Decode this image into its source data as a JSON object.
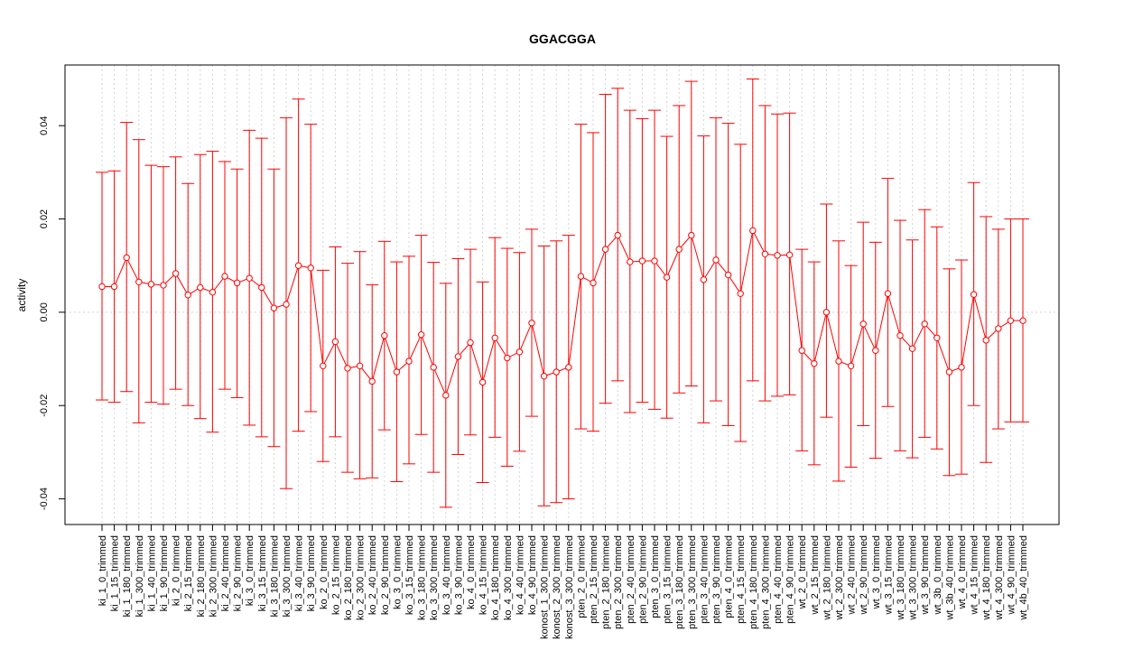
{
  "chart_data": {
    "type": "line",
    "title": "GGACGGA",
    "xlabel": "",
    "ylabel": "activity",
    "ylim": [
      -0.0455,
      0.053
    ],
    "yticks": [
      -0.04,
      -0.02,
      0.0,
      0.02,
      0.04
    ],
    "ytick_labels": [
      "-0.04",
      "-0.02",
      "0.00",
      "0.02",
      "0.04"
    ],
    "grid": true,
    "zero_line": true,
    "color": "#ff0000",
    "categories": [
      "ki_1_0_trimmed",
      "ki_1_15_trimmed",
      "ki_1_180_trimmed",
      "ki_1_300_trimmed",
      "ki_1_40_trimmed",
      "ki_1_90_trimmed",
      "ki_2_0_trimmed",
      "ki_2_15_trimmed",
      "ki_2_180_trimmed",
      "ki_2_300_trimmed",
      "ki_2_40_trimmed",
      "ki_2_90_trimmed",
      "ki_3_0_trimmed",
      "ki_3_15_trimmed",
      "ki_3_180_trimmed",
      "ki_3_300_trimmed",
      "ki_3_40_trimmed",
      "ki_3_90_trimmed",
      "ko_2_0_trimmed",
      "ko_2_15_trimmed",
      "ko_2_180_trimmed",
      "ko_2_300_trimmed",
      "ko_2_40_trimmed",
      "ko_2_90_trimmed",
      "ko_3_0_trimmed",
      "ko_3_15_trimmed",
      "ko_3_180_trimmed",
      "ko_3_300_trimmed",
      "ko_3_40_trimmed",
      "ko_3_90_trimmed",
      "ko_4_0_trimmed",
      "ko_4_15_trimmed",
      "ko_4_180_trimmed",
      "ko_4_300_trimmed",
      "ko_4_40_trimmed",
      "ko_4_90_trimmed",
      "konost_1_300_trimmed",
      "konost_2_300_trimmed",
      "konost_3_300_trimmed",
      "pten_2_0_trimmed",
      "pten_2_15_trimmed",
      "pten_2_180_trimmed",
      "pten_2_300_trimmed",
      "pten_2_40_trimmed",
      "pten_2_90_trimmed",
      "pten_3_0_trimmed",
      "pten_3_15_trimmed",
      "pten_3_180_trimmed",
      "pten_3_300_trimmed",
      "pten_3_40_trimmed",
      "pten_3_90_trimmed",
      "pten_4_0_trimmed",
      "pten_4_15_trimmed",
      "pten_4_180_trimmed",
      "pten_4_300_trimmed",
      "pten_4_40_trimmed",
      "pten_4_90_trimmed",
      "wt_2_0_trimmed",
      "wt_2_15_trimmed",
      "wt_2_180_trimmed",
      "wt_2_300_trimmed",
      "wt_2_40_trimmed",
      "wt_2_90_trimmed",
      "wt_3_0_trimmed",
      "wt_3_15_trimmed",
      "wt_3_180_trimmed",
      "wt_3_300_trimmed",
      "wt_3_90_trimmed",
      "wt_3b_0_trimmed",
      "wt_3b_40_trimmed",
      "wt_4_0_trimmed",
      "wt_4_15_trimmed",
      "wt_4_180_trimmed",
      "wt_4_300_trimmed",
      "wt_4_90_trimmed",
      "wt_4b_40_trimmed"
    ],
    "series": [
      {
        "values": [
          0.0055,
          0.0055,
          0.0117,
          0.0065,
          0.006,
          0.0058,
          0.0083,
          0.0037,
          0.0053,
          0.0043,
          0.0077,
          0.0063,
          0.0073,
          0.0053,
          0.0009,
          0.0017,
          0.01,
          0.0095,
          -0.0115,
          -0.0063,
          -0.012,
          -0.0115,
          -0.0148,
          -0.005,
          -0.0128,
          -0.0105,
          -0.0048,
          -0.0118,
          -0.0178,
          -0.0095,
          -0.0065,
          -0.015,
          -0.0055,
          -0.0098,
          -0.0085,
          -0.0023,
          -0.0137,
          -0.0128,
          -0.0118,
          0.0077,
          0.0063,
          0.0135,
          0.0165,
          0.0108,
          0.011,
          0.011,
          0.0075,
          0.0135,
          0.0165,
          0.007,
          0.0112,
          0.008,
          0.004,
          0.0175,
          0.0125,
          0.0122,
          0.0123,
          -0.0082,
          -0.011,
          0.0,
          -0.0105,
          -0.0115,
          -0.0025,
          -0.0082,
          0.004,
          -0.005,
          -0.0078,
          -0.0025,
          -0.0055,
          -0.0128,
          -0.0118,
          0.0038,
          -0.006,
          -0.0035,
          -0.0018,
          -0.0018
        ],
        "upper": [
          0.03,
          0.0303,
          0.0407,
          0.037,
          0.0315,
          0.0312,
          0.0333,
          0.0276,
          0.0338,
          0.0345,
          0.0323,
          0.0307,
          0.039,
          0.0373,
          0.0307,
          0.0417,
          0.0457,
          0.0403,
          0.009,
          0.014,
          0.0105,
          0.013,
          0.0059,
          0.0152,
          0.0108,
          0.012,
          0.0165,
          0.0107,
          0.0062,
          0.0115,
          0.0135,
          0.0065,
          0.016,
          0.0137,
          0.0128,
          0.0178,
          0.0142,
          0.0153,
          0.0165,
          0.0403,
          0.0385,
          0.0467,
          0.048,
          0.0433,
          0.0415,
          0.0433,
          0.0377,
          0.0443,
          0.0495,
          0.0378,
          0.0417,
          0.0405,
          0.036,
          0.05,
          0.0443,
          0.0425,
          0.0427,
          0.0135,
          0.0108,
          0.0232,
          0.0153,
          0.01,
          0.0193,
          0.015,
          0.0287,
          0.0197,
          0.0155,
          0.022,
          0.0183,
          0.0093,
          0.0112,
          0.0278,
          0.0205,
          0.0178,
          0.02,
          0.02
        ],
        "lower": [
          -0.0188,
          -0.0193,
          -0.017,
          -0.0237,
          -0.0193,
          -0.0197,
          -0.0165,
          -0.02,
          -0.0228,
          -0.0257,
          -0.0165,
          -0.0183,
          -0.0242,
          -0.0267,
          -0.0288,
          -0.0378,
          -0.0255,
          -0.0213,
          -0.032,
          -0.0267,
          -0.0343,
          -0.0357,
          -0.0355,
          -0.0252,
          -0.0363,
          -0.0325,
          -0.0262,
          -0.0343,
          -0.0418,
          -0.0305,
          -0.0263,
          -0.0365,
          -0.0268,
          -0.033,
          -0.0298,
          -0.0223,
          -0.0415,
          -0.0408,
          -0.04,
          -0.025,
          -0.0255,
          -0.0195,
          -0.0147,
          -0.0215,
          -0.0193,
          -0.0208,
          -0.0227,
          -0.0173,
          -0.0158,
          -0.0237,
          -0.019,
          -0.0243,
          -0.0277,
          -0.0147,
          -0.019,
          -0.018,
          -0.0177,
          -0.0297,
          -0.0327,
          -0.0225,
          -0.0362,
          -0.0332,
          -0.0243,
          -0.0313,
          -0.0202,
          -0.0297,
          -0.0312,
          -0.0268,
          -0.0293,
          -0.035,
          -0.0347,
          -0.02,
          -0.0322,
          -0.025,
          -0.0235,
          -0.0235
        ]
      }
    ]
  }
}
